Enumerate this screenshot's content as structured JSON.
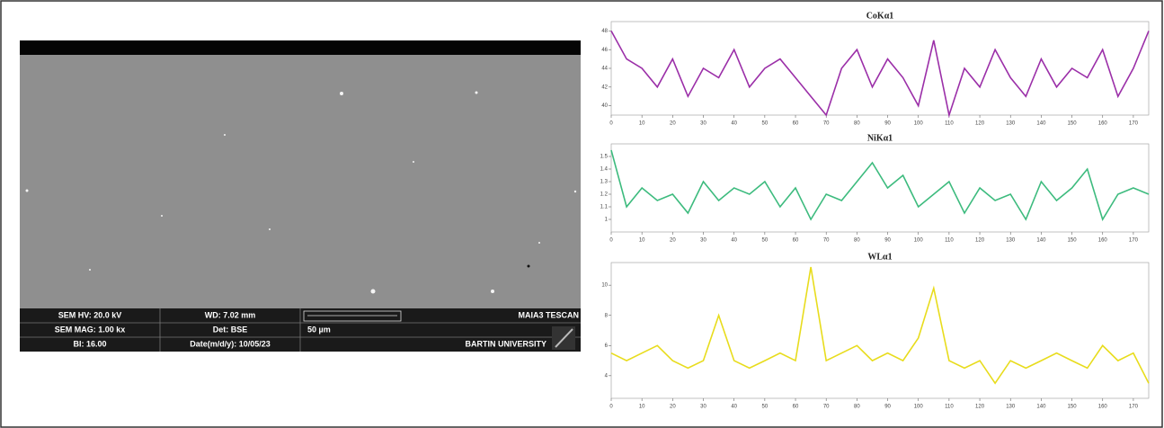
{
  "sem_info": {
    "hv": "SEM HV: 20.0 kV",
    "wd": "WD: 7.02 mm",
    "brand": "MAIA3 TESCAN",
    "mag": "SEM MAG: 1.00 kx",
    "det": "Det: BSE",
    "scale": "50 µm",
    "bi": "BI: 16.00",
    "date": "Date(m/d/y): 10/05/23",
    "org": "BARTIN UNIVERSITY"
  },
  "chart_data": [
    {
      "type": "line",
      "title": "CoKα1",
      "color": "#9b2fa8",
      "x": [
        0,
        5,
        10,
        15,
        20,
        25,
        30,
        35,
        40,
        45,
        50,
        55,
        60,
        65,
        70,
        75,
        80,
        85,
        90,
        95,
        100,
        105,
        110,
        115,
        120,
        125,
        130,
        135,
        140,
        145,
        150,
        155,
        160,
        165,
        170,
        175
      ],
      "values": [
        48,
        45,
        44,
        42,
        45,
        41,
        44,
        43,
        46,
        42,
        44,
        45,
        43,
        41,
        39,
        44,
        46,
        42,
        45,
        43,
        40,
        47,
        39,
        44,
        42,
        46,
        43,
        41,
        45,
        42,
        44,
        43,
        46,
        41,
        44,
        48
      ],
      "xlim": [
        0,
        175
      ],
      "xticks": [
        0,
        10,
        20,
        30,
        40,
        50,
        60,
        70,
        80,
        90,
        100,
        110,
        120,
        130,
        140,
        150,
        160,
        170
      ],
      "ylim": [
        39,
        49
      ],
      "yticks": [
        40,
        42,
        44,
        46,
        48
      ]
    },
    {
      "type": "line",
      "title": "NiKα1",
      "color": "#3dbb7e",
      "x": [
        0,
        5,
        10,
        15,
        20,
        25,
        30,
        35,
        40,
        45,
        50,
        55,
        60,
        65,
        70,
        75,
        80,
        85,
        90,
        95,
        100,
        105,
        110,
        115,
        120,
        125,
        130,
        135,
        140,
        145,
        150,
        155,
        160,
        165,
        170,
        175
      ],
      "values": [
        1.55,
        1.1,
        1.25,
        1.15,
        1.2,
        1.05,
        1.3,
        1.15,
        1.25,
        1.2,
        1.3,
        1.1,
        1.25,
        1.0,
        1.2,
        1.15,
        1.3,
        1.45,
        1.25,
        1.35,
        1.1,
        1.2,
        1.3,
        1.05,
        1.25,
        1.15,
        1.2,
        1.0,
        1.3,
        1.15,
        1.25,
        1.4,
        1.0,
        1.2,
        1.25,
        1.2
      ],
      "xlim": [
        0,
        175
      ],
      "xticks": [
        0,
        10,
        20,
        30,
        40,
        50,
        60,
        70,
        80,
        90,
        100,
        110,
        120,
        130,
        140,
        150,
        160,
        170
      ],
      "ylim": [
        0.9,
        1.6
      ],
      "yticks": [
        1.0,
        1.1,
        1.2,
        1.3,
        1.4,
        1.5
      ]
    },
    {
      "type": "line",
      "title": "WLα1",
      "color": "#e8dc1c",
      "x": [
        0,
        5,
        10,
        15,
        20,
        25,
        30,
        35,
        40,
        45,
        50,
        55,
        60,
        65,
        70,
        75,
        80,
        85,
        90,
        95,
        100,
        105,
        110,
        115,
        120,
        125,
        130,
        135,
        140,
        145,
        150,
        155,
        160,
        165,
        170,
        175
      ],
      "values": [
        5.5,
        5,
        5.5,
        6,
        5,
        4.5,
        5,
        8,
        5,
        4.5,
        5,
        5.5,
        5,
        11.2,
        5,
        5.5,
        6,
        5,
        5.5,
        5,
        6.5,
        9.8,
        5,
        4.5,
        5,
        3.5,
        5,
        4.5,
        5,
        5.5,
        5,
        4.5,
        6,
        5,
        5.5,
        3.5
      ],
      "xlim": [
        0,
        175
      ],
      "xticks": [
        0,
        10,
        20,
        30,
        40,
        50,
        60,
        70,
        80,
        90,
        100,
        110,
        120,
        130,
        140,
        150,
        160,
        170
      ],
      "ylim": [
        2.5,
        11.5
      ],
      "yticks": [
        4,
        6,
        8,
        10
      ]
    }
  ]
}
